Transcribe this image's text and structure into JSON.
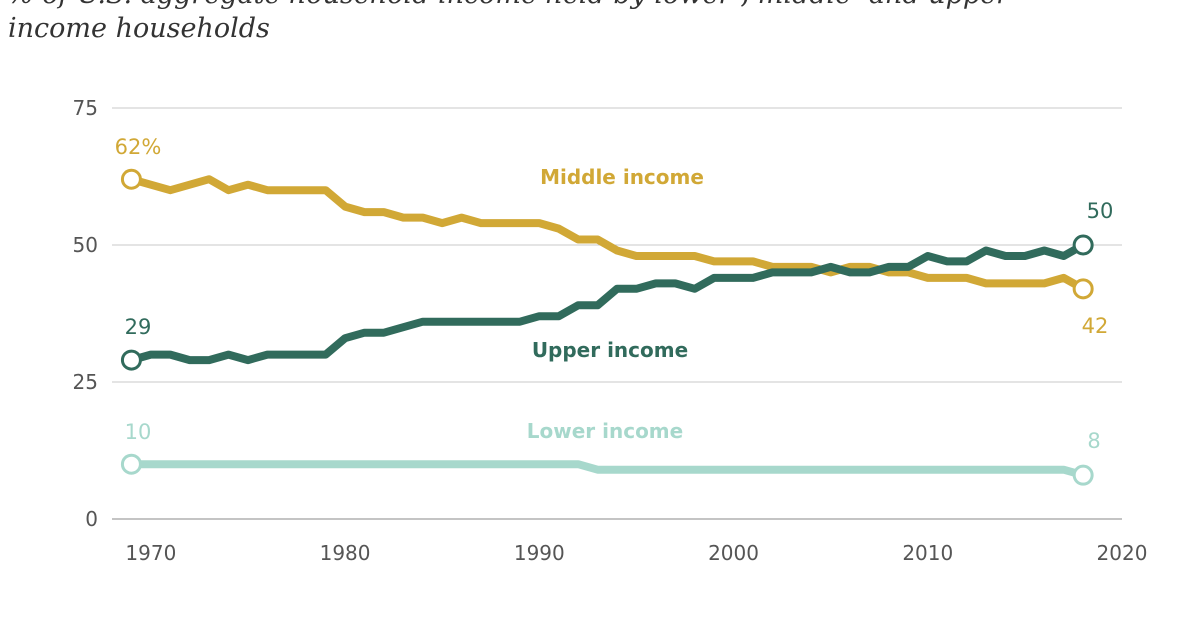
{
  "chart_data": {
    "type": "line",
    "title": "",
    "subtitle": "% of U.S. aggregate household income held by lower-, middle- and upper-income households",
    "xlabel": "",
    "ylabel": "",
    "xlim": [
      1968,
      2020
    ],
    "ylim": [
      0,
      75
    ],
    "x_ticks": [
      1970,
      1980,
      1990,
      2000,
      2010,
      2020
    ],
    "y_ticks": [
      0,
      25,
      50,
      75
    ],
    "grid": true,
    "x": [
      1969,
      1970,
      1971,
      1972,
      1973,
      1974,
      1975,
      1976,
      1977,
      1978,
      1979,
      1980,
      1981,
      1982,
      1983,
      1984,
      1985,
      1986,
      1987,
      1988,
      1989,
      1990,
      1991,
      1992,
      1993,
      1994,
      1995,
      1996,
      1997,
      1998,
      1999,
      2000,
      2001,
      2002,
      2003,
      2004,
      2005,
      2006,
      2007,
      2008,
      2009,
      2010,
      2011,
      2012,
      2013,
      2014,
      2015,
      2016,
      2017,
      2018
    ],
    "series": [
      {
        "name": "Middle income",
        "color": "#d1a836",
        "start_label": "62%",
        "end_label": "42",
        "values": [
          62,
          61,
          60,
          61,
          62,
          60,
          61,
          60,
          60,
          60,
          60,
          57,
          56,
          56,
          55,
          55,
          54,
          55,
          54,
          54,
          54,
          54,
          53,
          51,
          51,
          49,
          48,
          48,
          48,
          48,
          47,
          47,
          47,
          46,
          46,
          46,
          45,
          46,
          46,
          45,
          45,
          44,
          44,
          44,
          43,
          43,
          43,
          43,
          44,
          42
        ]
      },
      {
        "name": "Upper income",
        "color": "#316b5c",
        "start_label": "29",
        "end_label": "50",
        "values": [
          29,
          30,
          30,
          29,
          29,
          30,
          29,
          30,
          30,
          30,
          30,
          33,
          34,
          34,
          35,
          36,
          36,
          36,
          36,
          36,
          36,
          37,
          37,
          39,
          39,
          42,
          42,
          43,
          43,
          42,
          44,
          44,
          44,
          45,
          45,
          45,
          46,
          45,
          45,
          46,
          46,
          48,
          47,
          47,
          49,
          48,
          48,
          49,
          48,
          50
        ]
      },
      {
        "name": "Lower income",
        "color": "#a7d8cc",
        "start_label": "10",
        "end_label": "8",
        "values": [
          10,
          10,
          10,
          10,
          10,
          10,
          10,
          10,
          10,
          10,
          10,
          10,
          10,
          10,
          10,
          10,
          10,
          10,
          10,
          10,
          10,
          10,
          10,
          10,
          9,
          9,
          9,
          9,
          9,
          9,
          9,
          9,
          9,
          9,
          9,
          9,
          9,
          9,
          9,
          9,
          9,
          9,
          9,
          9,
          9,
          9,
          9,
          9,
          9,
          8
        ]
      }
    ]
  }
}
